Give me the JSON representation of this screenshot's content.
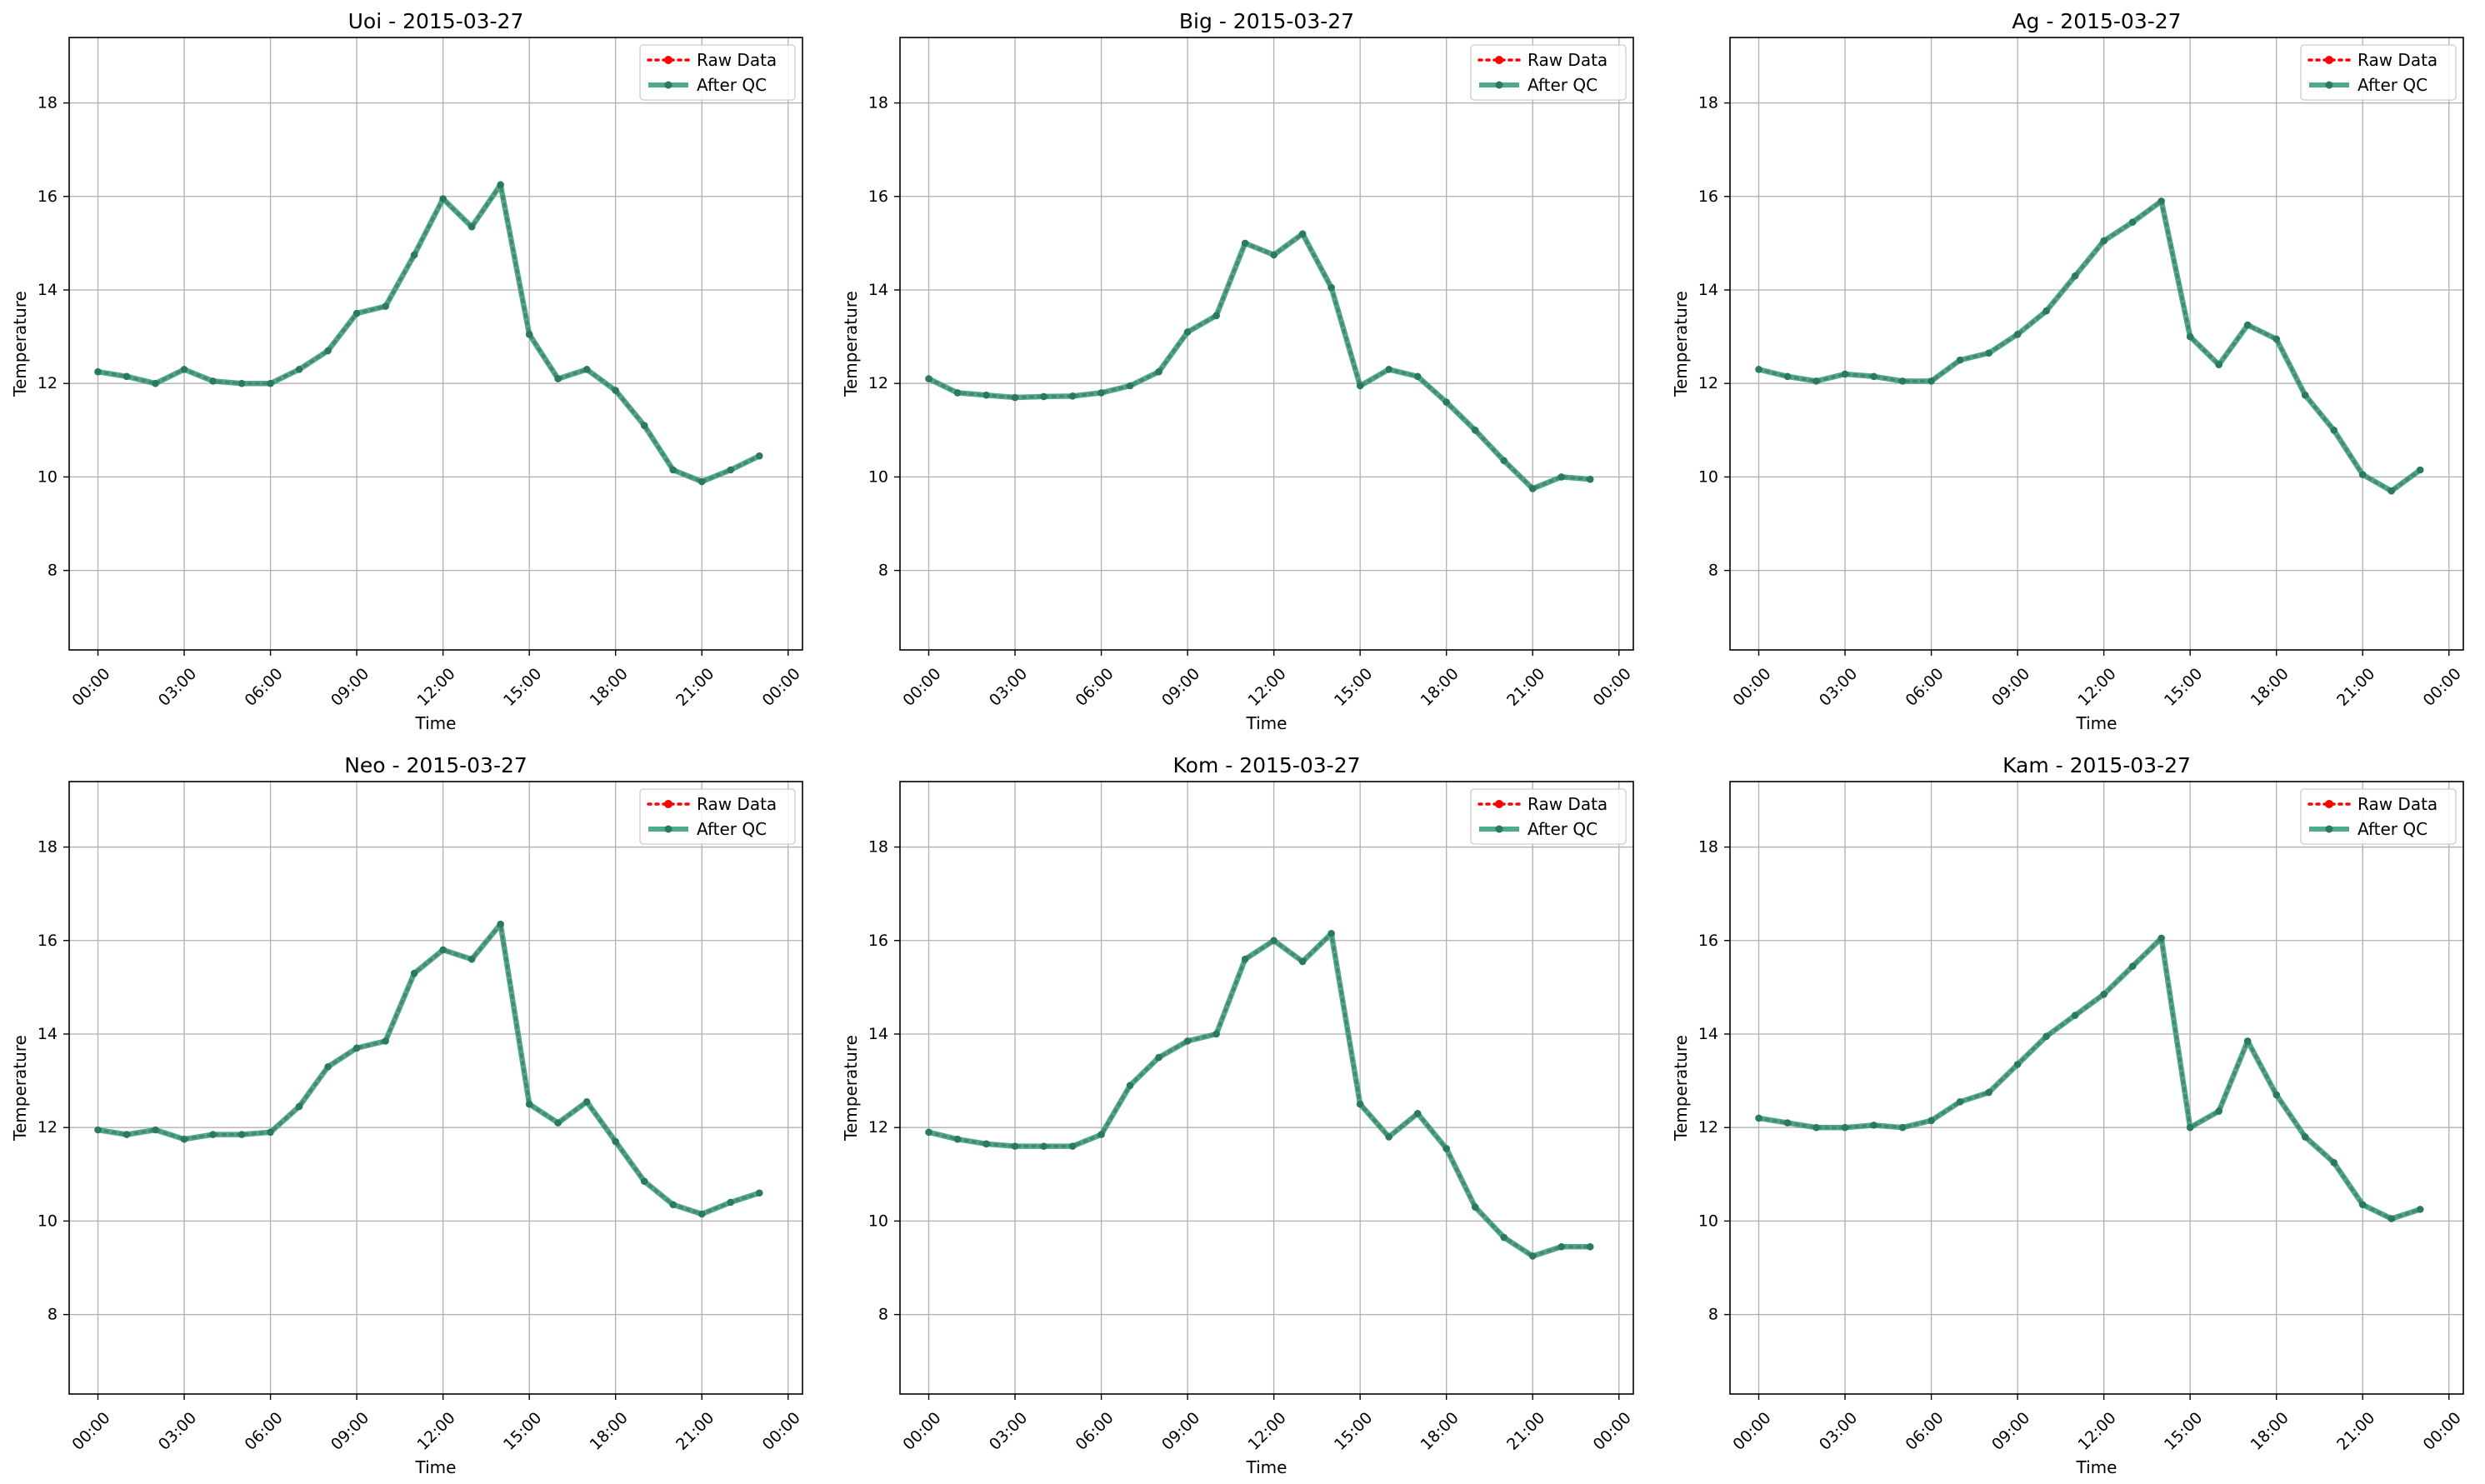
{
  "figure": {
    "x_tick_labels": [
      "00:00",
      "03:00",
      "06:00",
      "09:00",
      "12:00",
      "15:00",
      "18:00",
      "21:00",
      "00:00"
    ],
    "y_ticks": [
      8,
      10,
      12,
      14,
      16,
      18
    ],
    "colors": {
      "raw": "#ff0000",
      "qc": "#2e9c77",
      "marker": "#2a7a5f",
      "grid": "#b0b0b0"
    }
  },
  "chart_data": [
    {
      "type": "line",
      "title": "Uoi - 2015-03-27",
      "xlabel": "Time",
      "ylabel": "Temperature",
      "ylim": [
        6.3,
        19.4
      ],
      "xlim": [
        "2015-03-27 -01:00",
        "2015-03-28 00:30"
      ],
      "grid": true,
      "legend": "top-right",
      "x": [
        "00:00",
        "01:00",
        "02:00",
        "03:00",
        "04:00",
        "05:00",
        "06:00",
        "07:00",
        "08:00",
        "09:00",
        "10:00",
        "11:00",
        "12:00",
        "13:00",
        "14:00",
        "15:00",
        "16:00",
        "17:00",
        "18:00",
        "19:00",
        "20:00",
        "21:00",
        "22:00",
        "23:00"
      ],
      "series": [
        {
          "name": "Raw Data",
          "values": [
            12.25,
            12.15,
            12.0,
            12.3,
            12.05,
            12.0,
            12.0,
            12.3,
            12.7,
            13.5,
            13.65,
            14.75,
            15.95,
            15.35,
            16.25,
            13.05,
            12.1,
            12.3,
            11.85,
            11.1,
            10.15,
            9.9,
            10.15,
            10.45
          ]
        },
        {
          "name": "After QC",
          "values": [
            12.25,
            12.15,
            12.0,
            12.3,
            12.05,
            12.0,
            12.0,
            12.3,
            12.7,
            13.5,
            13.65,
            14.75,
            15.95,
            15.35,
            16.25,
            13.05,
            12.1,
            12.3,
            11.85,
            11.1,
            10.15,
            9.9,
            10.15,
            10.45
          ]
        }
      ]
    },
    {
      "type": "line",
      "title": "Big - 2015-03-27",
      "xlabel": "Time",
      "ylabel": "Temperature",
      "ylim": [
        6.3,
        19.4
      ],
      "grid": true,
      "legend": "top-right",
      "x": [
        "00:00",
        "01:00",
        "02:00",
        "03:00",
        "04:00",
        "05:00",
        "06:00",
        "07:00",
        "08:00",
        "09:00",
        "10:00",
        "11:00",
        "12:00",
        "13:00",
        "14:00",
        "15:00",
        "16:00",
        "17:00",
        "18:00",
        "19:00",
        "20:00",
        "21:00",
        "22:00",
        "23:00"
      ],
      "series": [
        {
          "name": "Raw Data",
          "values": [
            12.1,
            11.8,
            11.75,
            11.7,
            11.72,
            11.73,
            11.8,
            11.95,
            12.25,
            13.1,
            13.45,
            15.0,
            14.75,
            15.2,
            14.05,
            11.95,
            12.3,
            12.15,
            11.6,
            11.0,
            10.35,
            9.75,
            10.0,
            9.95
          ]
        },
        {
          "name": "After QC",
          "values": [
            12.1,
            11.8,
            11.75,
            11.7,
            11.72,
            11.73,
            11.8,
            11.95,
            12.25,
            13.1,
            13.45,
            15.0,
            14.75,
            15.2,
            14.05,
            11.95,
            12.3,
            12.15,
            11.6,
            11.0,
            10.35,
            9.75,
            10.0,
            9.95
          ]
        }
      ]
    },
    {
      "type": "line",
      "title": "Ag - 2015-03-27",
      "xlabel": "Time",
      "ylabel": "Temperature",
      "ylim": [
        6.3,
        19.4
      ],
      "grid": true,
      "legend": "top-right",
      "x": [
        "00:00",
        "01:00",
        "02:00",
        "03:00",
        "04:00",
        "05:00",
        "06:00",
        "07:00",
        "08:00",
        "09:00",
        "10:00",
        "11:00",
        "12:00",
        "13:00",
        "14:00",
        "15:00",
        "16:00",
        "17:00",
        "18:00",
        "19:00",
        "20:00",
        "21:00",
        "22:00",
        "23:00"
      ],
      "series": [
        {
          "name": "Raw Data",
          "values": [
            12.3,
            12.15,
            12.05,
            12.2,
            12.15,
            12.05,
            12.05,
            12.5,
            12.65,
            13.05,
            13.55,
            14.3,
            15.05,
            15.45,
            15.9,
            13.0,
            12.4,
            13.25,
            12.95,
            11.75,
            11.0,
            10.05,
            9.7,
            10.15
          ]
        },
        {
          "name": "After QC",
          "values": [
            12.3,
            12.15,
            12.05,
            12.2,
            12.15,
            12.05,
            12.05,
            12.5,
            12.65,
            13.05,
            13.55,
            14.3,
            15.05,
            15.45,
            15.9,
            13.0,
            12.4,
            13.25,
            12.95,
            11.75,
            11.0,
            10.05,
            9.7,
            10.15
          ]
        }
      ]
    },
    {
      "type": "line",
      "title": "Neo - 2015-03-27",
      "xlabel": "Time",
      "ylabel": "Temperature",
      "ylim": [
        6.3,
        19.4
      ],
      "grid": true,
      "legend": "top-right",
      "x": [
        "00:00",
        "01:00",
        "02:00",
        "03:00",
        "04:00",
        "05:00",
        "06:00",
        "07:00",
        "08:00",
        "09:00",
        "10:00",
        "11:00",
        "12:00",
        "13:00",
        "14:00",
        "15:00",
        "16:00",
        "17:00",
        "18:00",
        "19:00",
        "20:00",
        "21:00",
        "22:00",
        "23:00"
      ],
      "series": [
        {
          "name": "Raw Data",
          "values": [
            11.95,
            11.85,
            11.95,
            11.75,
            11.85,
            11.85,
            11.9,
            12.45,
            13.3,
            13.7,
            13.85,
            15.3,
            15.8,
            15.6,
            16.35,
            12.5,
            12.1,
            12.55,
            11.7,
            10.85,
            10.35,
            10.15,
            10.4,
            10.6
          ]
        },
        {
          "name": "After QC",
          "values": [
            11.95,
            11.85,
            11.95,
            11.75,
            11.85,
            11.85,
            11.9,
            12.45,
            13.3,
            13.7,
            13.85,
            15.3,
            15.8,
            15.6,
            16.35,
            12.5,
            12.1,
            12.55,
            11.7,
            10.85,
            10.35,
            10.15,
            10.4,
            10.6
          ]
        }
      ]
    },
    {
      "type": "line",
      "title": "Kom - 2015-03-27",
      "xlabel": "Time",
      "ylabel": "Temperature",
      "ylim": [
        6.3,
        19.4
      ],
      "grid": true,
      "legend": "top-right",
      "x": [
        "00:00",
        "01:00",
        "02:00",
        "03:00",
        "04:00",
        "05:00",
        "06:00",
        "07:00",
        "08:00",
        "09:00",
        "10:00",
        "11:00",
        "12:00",
        "13:00",
        "14:00",
        "15:00",
        "16:00",
        "17:00",
        "18:00",
        "19:00",
        "20:00",
        "21:00",
        "22:00",
        "23:00"
      ],
      "series": [
        {
          "name": "Raw Data",
          "values": [
            11.9,
            11.75,
            11.65,
            11.6,
            11.6,
            11.6,
            11.85,
            12.9,
            13.5,
            13.85,
            14.0,
            15.6,
            16.0,
            15.55,
            16.15,
            12.5,
            11.8,
            12.3,
            11.55,
            10.3,
            9.65,
            9.25,
            9.45,
            9.45
          ]
        },
        {
          "name": "After QC",
          "values": [
            11.9,
            11.75,
            11.65,
            11.6,
            11.6,
            11.6,
            11.85,
            12.9,
            13.5,
            13.85,
            14.0,
            15.6,
            16.0,
            15.55,
            16.15,
            12.5,
            11.8,
            12.3,
            11.55,
            10.3,
            9.65,
            9.25,
            9.45,
            9.45
          ]
        }
      ]
    },
    {
      "type": "line",
      "title": "Kam - 2015-03-27",
      "xlabel": "Time",
      "ylabel": "Temperature",
      "ylim": [
        6.3,
        19.4
      ],
      "grid": true,
      "legend": "top-right",
      "x": [
        "00:00",
        "01:00",
        "02:00",
        "03:00",
        "04:00",
        "05:00",
        "06:00",
        "07:00",
        "08:00",
        "09:00",
        "10:00",
        "11:00",
        "12:00",
        "13:00",
        "14:00",
        "15:00",
        "16:00",
        "17:00",
        "18:00",
        "19:00",
        "20:00",
        "21:00",
        "22:00",
        "23:00"
      ],
      "series": [
        {
          "name": "Raw Data",
          "values": [
            12.2,
            12.1,
            12.0,
            12.0,
            12.05,
            12.0,
            12.15,
            12.55,
            12.75,
            13.35,
            13.95,
            14.4,
            14.85,
            15.45,
            16.05,
            12.0,
            12.35,
            13.85,
            12.7,
            11.8,
            11.25,
            10.35,
            10.05,
            10.25
          ]
        },
        {
          "name": "After QC",
          "values": [
            12.2,
            12.1,
            12.0,
            12.0,
            12.05,
            12.0,
            12.15,
            12.55,
            12.75,
            13.35,
            13.95,
            14.4,
            14.85,
            15.45,
            16.05,
            12.0,
            12.35,
            13.85,
            12.7,
            11.8,
            11.25,
            10.35,
            10.05,
            10.25
          ]
        }
      ]
    }
  ]
}
